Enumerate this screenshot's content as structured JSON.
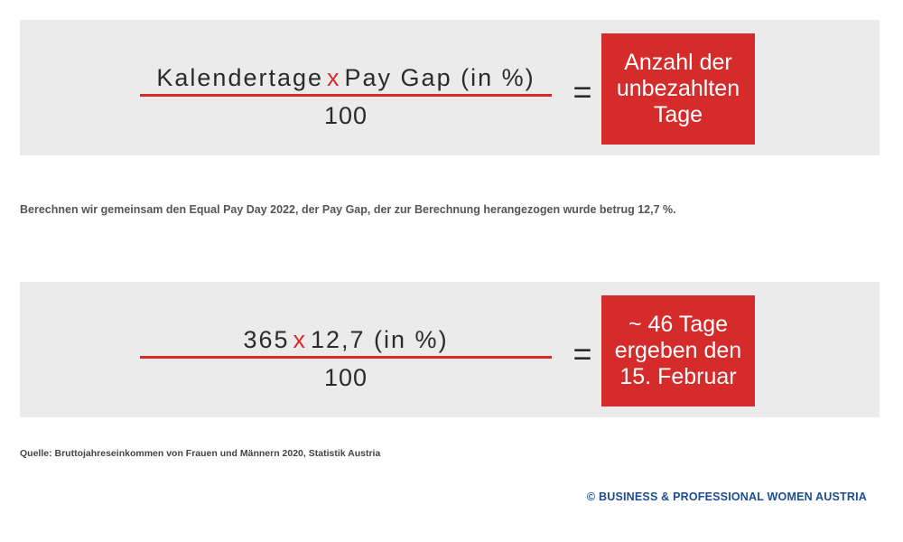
{
  "formula_general": {
    "numerator_left": "Kalendertage",
    "operator": "x",
    "numerator_right": "Pay Gap  (in %)",
    "denominator": "100",
    "equals": "=",
    "result_lines": [
      "Anzahl der",
      "unbezahlten",
      "Tage"
    ]
  },
  "description": "Berechnen wir gemeinsam den Equal Pay Day 2022, der Pay Gap, der zur Berechnung herangezogen wurde betrug 12,7 %.",
  "formula_example": {
    "numerator_left": "365",
    "operator": "x",
    "numerator_right": "12,7  (in %)",
    "denominator": "100",
    "equals": "=",
    "result_lines": [
      "~ 46 Tage",
      "ergeben den",
      "15. Februar"
    ]
  },
  "source": "Quelle: Bruttojahreseinkommen von Frauen und Männern 2020, Statistik Austria",
  "copyright": "© BUSINESS & PROFESSIONAL WOMEN AUSTRIA",
  "colors": {
    "accent_red": "#d52b2b",
    "panel_gray": "#ebebeb",
    "copyright_blue": "#1c4d94"
  }
}
